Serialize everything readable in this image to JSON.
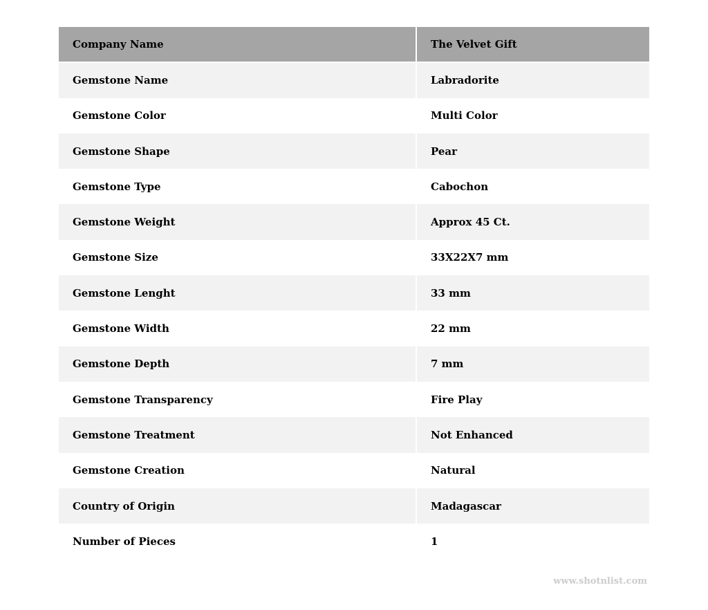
{
  "header": {
    "key": "Company Name",
    "value": "The Velvet Gift"
  },
  "rows": [
    {
      "key": "Gemstone Name",
      "value": "Labradorite"
    },
    {
      "key": "Gemstone Color",
      "value": "Multi Color"
    },
    {
      "key": "Gemstone Shape",
      "value": "Pear"
    },
    {
      "key": "Gemstone Type",
      "value": "Cabochon"
    },
    {
      "key": "Gemstone Weight",
      "value": "Approx 45 Ct."
    },
    {
      "key": "Gemstone Size",
      "value": "33X22X7 mm"
    },
    {
      "key": "Gemstone Lenght",
      "value": "33 mm"
    },
    {
      "key": "Gemstone Width",
      "value": "22 mm"
    },
    {
      "key": "Gemstone Depth",
      "value": "7 mm"
    },
    {
      "key": "Gemstone Transparency",
      "value": "Fire Play"
    },
    {
      "key": "Gemstone Treatment",
      "value": "Not Enhanced"
    },
    {
      "key": "Gemstone Creation",
      "value": "Natural"
    },
    {
      "key": "Country of Origin",
      "value": "Madagascar"
    },
    {
      "key": "Number of Pieces",
      "value": "1"
    }
  ],
  "watermark": "www.shotnlist.com",
  "colors": {
    "header_bg": "#a5a5a5",
    "stripe_bg": "#f2f2f2",
    "watermark": "#cccccc"
  }
}
